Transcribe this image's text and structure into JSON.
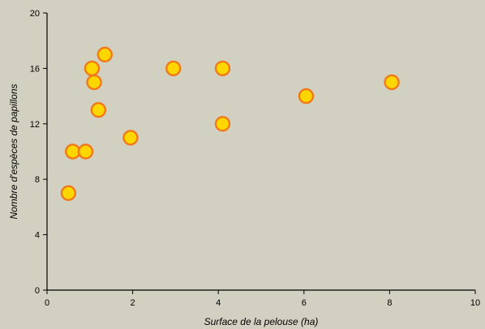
{
  "chart_data": {
    "type": "scatter",
    "title": "",
    "xlabel": "Surface de la pelouse (ha)",
    "ylabel": "Nombre d'espèces de papillons",
    "xlim": [
      0,
      10
    ],
    "ylim": [
      0,
      20
    ],
    "x_ticks": [
      "0",
      "2",
      "4",
      "6",
      "8",
      "10"
    ],
    "y_ticks": [
      "0",
      "4",
      "8",
      "12",
      "16",
      "20"
    ],
    "grid": false,
    "legend": "none",
    "series": [
      {
        "points": [
          {
            "x": 0.5,
            "y": 7
          },
          {
            "x": 0.6,
            "y": 10
          },
          {
            "x": 0.9,
            "y": 10
          },
          {
            "x": 1.05,
            "y": 16
          },
          {
            "x": 1.1,
            "y": 15
          },
          {
            "x": 1.2,
            "y": 13
          },
          {
            "x": 1.35,
            "y": 17
          },
          {
            "x": 1.95,
            "y": 11
          },
          {
            "x": 2.95,
            "y": 16
          },
          {
            "x": 4.1,
            "y": 16
          },
          {
            "x": 4.1,
            "y": 12
          },
          {
            "x": 6.05,
            "y": 14
          },
          {
            "x": 8.05,
            "y": 15
          }
        ]
      }
    ],
    "colors": {
      "background": "#d1d0c1",
      "point_fill": "#ffd600",
      "point_stroke": "#f07a1a",
      "axis": "#000000"
    }
  }
}
